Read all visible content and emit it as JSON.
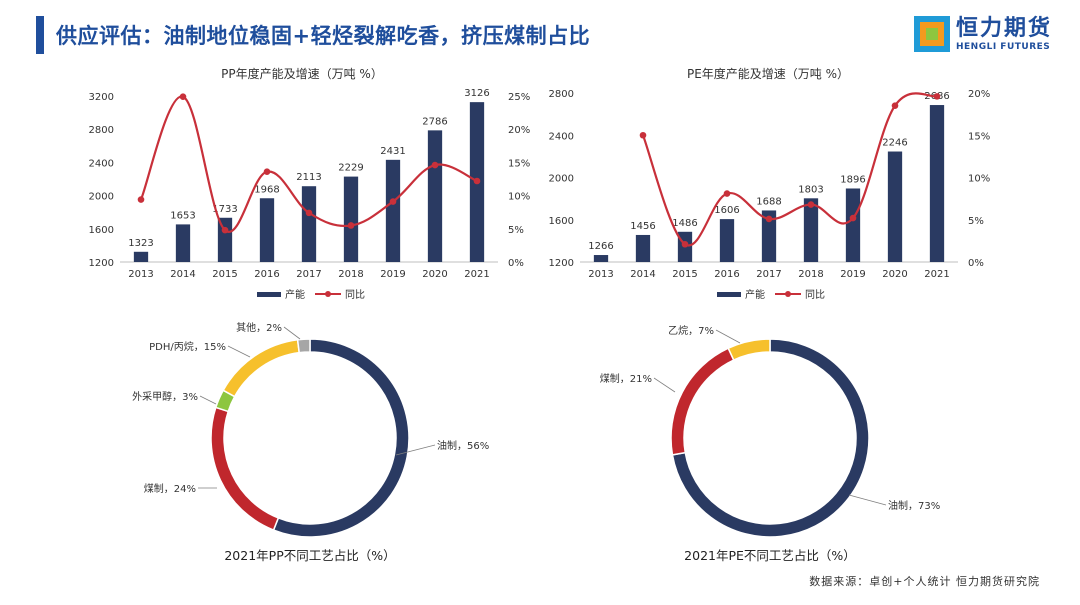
{
  "header": {
    "title": "供应评估：油制地位稳固+轻烃裂解吃香，挤压煤制占比",
    "logo_cn": "恒力期货",
    "logo_en": "HENGLI FUTURES"
  },
  "source": "数据来源：卓创+个人统计  恒力期货研究院",
  "colors": {
    "bar": "#2a3a62",
    "line": "#c8303a",
    "oil": "#2a3a62",
    "coal": "#c0272d",
    "methanol": "#8dc63f",
    "pdh": "#f6c02c",
    "other": "#a6a6a6",
    "title_blue": "#1f4e9c"
  },
  "chart_data": [
    {
      "type": "bar",
      "title": "PP年度产能及增速（万吨 %）",
      "categories": [
        "2013",
        "2014",
        "2015",
        "2016",
        "2017",
        "2018",
        "2019",
        "2020",
        "2021"
      ],
      "series": [
        {
          "name": "产能",
          "kind": "bar",
          "axis": "left",
          "values": [
            1323,
            1653,
            1733,
            1968,
            2113,
            2229,
            2431,
            2786,
            3126
          ]
        },
        {
          "name": "同比",
          "kind": "line",
          "axis": "right",
          "values": [
            9.4,
            24.9,
            4.8,
            13.6,
            7.4,
            5.5,
            9.1,
            14.6,
            12.2
          ]
        }
      ],
      "ylim": [
        1200,
        3200
      ],
      "yticks": [
        1200,
        1600,
        2000,
        2400,
        2800,
        3200
      ],
      "y2lim": [
        0,
        25
      ],
      "y2ticks": [
        "0%",
        "5%",
        "10%",
        "15%",
        "20%",
        "25%"
      ],
      "legend": [
        "产能",
        "同比"
      ],
      "legend_position": "bottom"
    },
    {
      "type": "bar",
      "title": "PE年度产能及增速（万吨 %）",
      "categories": [
        "2013",
        "2014",
        "2015",
        "2016",
        "2017",
        "2018",
        "2019",
        "2020",
        "2021"
      ],
      "series": [
        {
          "name": "产能",
          "kind": "bar",
          "axis": "left",
          "values": [
            1266,
            1456,
            1486,
            1606,
            1688,
            1803,
            1896,
            2246,
            2686
          ]
        },
        {
          "name": "同比",
          "kind": "line",
          "axis": "right",
          "values": [
            null,
            15.0,
            2.1,
            8.1,
            5.1,
            6.8,
            5.2,
            18.5,
            19.6
          ]
        }
      ],
      "ylim": [
        1200,
        2800
      ],
      "yticks": [
        1200,
        1600,
        2000,
        2400,
        2800
      ],
      "y2lim": [
        0,
        20
      ],
      "y2ticks": [
        "0%",
        "5%",
        "10%",
        "15%",
        "20%"
      ],
      "legend": [
        "产能",
        "同比"
      ],
      "legend_position": "bottom"
    },
    {
      "type": "pie",
      "title": "2021年PP不同工艺占比（%）",
      "slices": [
        {
          "label": "油制，56%",
          "value": 56,
          "color": "#2a3a62"
        },
        {
          "label": "煤制，24%",
          "value": 24,
          "color": "#c0272d"
        },
        {
          "label": "外采甲醇，3%",
          "value": 3,
          "color": "#8dc63f"
        },
        {
          "label": "PDH/丙烷，15%",
          "value": 15,
          "color": "#f6c02c"
        },
        {
          "label": "其他，2%",
          "value": 2,
          "color": "#a6a6a6"
        }
      ]
    },
    {
      "type": "pie",
      "title": "2021年PE不同工艺占比（%）",
      "slices": [
        {
          "label": "油制，73%",
          "value": 73,
          "color": "#2a3a62"
        },
        {
          "label": "煤制，21%",
          "value": 21,
          "color": "#c0272d"
        },
        {
          "label": "乙烷，7%",
          "value": 7,
          "color": "#f6c02c"
        }
      ]
    }
  ]
}
